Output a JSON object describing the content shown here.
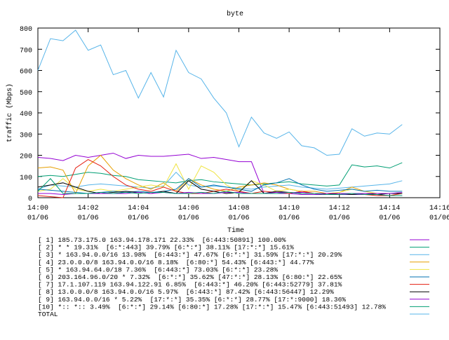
{
  "chart_data": {
    "type": "line",
    "title": "byte",
    "xlabel": "Time",
    "ylabel": "traffic (Mbps)",
    "xlim": [
      0,
      16
    ],
    "ylim": [
      0,
      800
    ],
    "xticks": [
      {
        "value": 0,
        "label": "14:00",
        "date": "01/06"
      },
      {
        "value": 2,
        "label": "14:02",
        "date": "01/06"
      },
      {
        "value": 4,
        "label": "14:04",
        "date": "01/06"
      },
      {
        "value": 6,
        "label": "14:06",
        "date": "01/06"
      },
      {
        "value": 8,
        "label": "14:08",
        "date": "01/06"
      },
      {
        "value": 10,
        "label": "14:10",
        "date": "01/06"
      },
      {
        "value": 12,
        "label": "14:12",
        "date": "01/06"
      },
      {
        "value": 14,
        "label": "14:14",
        "date": "01/06"
      },
      {
        "value": 16,
        "label": "14:16",
        "date": "01/06"
      }
    ],
    "yticks": [
      0,
      100,
      200,
      300,
      400,
      500,
      600,
      700,
      800
    ],
    "x": [
      0,
      0.5,
      1,
      1.5,
      2,
      2.5,
      3,
      3.5,
      4,
      4.5,
      5,
      5.5,
      6,
      6.5,
      7,
      7.5,
      8,
      8.5,
      9,
      9.5,
      10,
      10.5,
      11,
      11.5,
      12,
      12.5,
      13,
      13.5,
      14,
      14.5
    ],
    "series": [
      {
        "name": "[ 1] 185.73.175.0 163.94.178.171 22.33%  [6:443:50891] 100.00%",
        "color": "#9400d3",
        "values": [
          190,
          185,
          175,
          200,
          190,
          200,
          210,
          185,
          200,
          195,
          195,
          200,
          205,
          185,
          190,
          180,
          170,
          170,
          20,
          20,
          20,
          15,
          15,
          15,
          15,
          15,
          15,
          15,
          10,
          10
        ]
      },
      {
        "name": "[ 2] * * 19.31%  [6:*:443] 39.79% [6:*:*] 38.11% [17:*:*] 15.61%",
        "color": "#009e73",
        "values": [
          100,
          105,
          100,
          110,
          120,
          115,
          105,
          100,
          85,
          80,
          75,
          70,
          80,
          85,
          75,
          70,
          65,
          60,
          65,
          70,
          75,
          65,
          60,
          55,
          60,
          155,
          145,
          150,
          140,
          165
        ]
      },
      {
        "name": "[ 3] * 163.94.0.0/16 13.98%  [6:443:*] 47.67% [6:*:*] 31.59% [17:*:*] 20.29%",
        "color": "#56b4e9",
        "values": [
          40,
          60,
          55,
          50,
          60,
          65,
          60,
          55,
          50,
          45,
          55,
          120,
          60,
          50,
          55,
          50,
          45,
          40,
          50,
          55,
          60,
          50,
          45,
          40,
          45,
          50,
          55,
          60,
          65,
          80
        ]
      },
      {
        "name": "[ 4] 23.0.0.0/8 163.94.0.0/16 8.18%  [6:80:*] 54.43% [6:443:*] 44.77%",
        "color": "#e69f00",
        "values": [
          140,
          145,
          130,
          20,
          150,
          200,
          130,
          90,
          60,
          40,
          70,
          30,
          90,
          60,
          40,
          30,
          50,
          60,
          70,
          60,
          40,
          30,
          30,
          20,
          25,
          50,
          30,
          20,
          20,
          20
        ]
      },
      {
        "name": "[ 5] * 163.94.64.0/18 7.36%  [6:443:*] 73.03% [6:*:*] 23.28%",
        "color": "#f0e442",
        "values": [
          30,
          40,
          90,
          40,
          30,
          40,
          30,
          40,
          50,
          60,
          50,
          160,
          40,
          150,
          120,
          60,
          30,
          80,
          60,
          30,
          40,
          30,
          20,
          20,
          25,
          40,
          30,
          20,
          20,
          20
        ]
      },
      {
        "name": "[ 6] 203.164.96.0/20 * 7.32%  [6:*:*] 35.62% [47:*:*] 28.13% [6:80:*] 22.65%",
        "color": "#0072b2",
        "values": [
          40,
          35,
          30,
          25,
          20,
          25,
          30,
          25,
          30,
          25,
          30,
          40,
          90,
          50,
          60,
          50,
          40,
          30,
          60,
          70,
          90,
          60,
          40,
          30,
          35,
          40,
          30,
          35,
          30,
          30
        ]
      },
      {
        "name": "[ 7] 17.1.107.119 163.94.122.91 6.85%  [6:443:*] 46.20% [6:443:52779] 37.81%",
        "color": "#e51e10",
        "values": [
          10,
          5,
          0,
          140,
          180,
          150,
          100,
          60,
          40,
          30,
          50,
          30,
          20,
          20,
          30,
          40,
          30,
          20,
          30,
          25,
          20,
          30,
          20,
          15,
          20,
          20,
          15,
          10,
          10,
          20
        ]
      },
      {
        "name": "[ 8] 13.0.0.0/8 163.94.0.0/16 5.97%  [6:443:*] 87.42% [6:443:56447] 12.29%",
        "color": "#000000",
        "values": [
          50,
          60,
          70,
          50,
          30,
          20,
          25,
          30,
          25,
          20,
          30,
          20,
          80,
          40,
          30,
          20,
          25,
          80,
          20,
          30,
          25,
          20,
          20,
          15,
          20,
          15,
          20,
          15,
          20,
          20
        ]
      },
      {
        "name": "[ 9] 163.94.0.0/16 * 5.22%  [17:*:*] 35.35% [6:*:*] 28.77% [17:*:9000] 18.36%",
        "color": "#9400d3",
        "values": [
          20,
          20,
          15,
          20,
          20,
          20,
          20,
          20,
          25,
          20,
          25,
          20,
          25,
          20,
          20,
          25,
          25,
          20,
          20,
          25,
          25,
          25,
          20,
          20,
          20,
          20,
          20,
          20,
          20,
          25
        ]
      },
      {
        "name": "[10] *:: *:: 3.49%  [6:*:*] 29.14% [6:80:*] 17.28% [17:*:*] 15.47% [6:443:51493] 12.78%",
        "color": "#009e73",
        "values": [
          30,
          90,
          20,
          20,
          20,
          25,
          20,
          25,
          20,
          25,
          25,
          20,
          20,
          25,
          20,
          30,
          20,
          20,
          20,
          20,
          25,
          20,
          20,
          15,
          15,
          20,
          15,
          15,
          10,
          10
        ]
      },
      {
        "name": "TOTAL",
        "color": "#56b4e9",
        "values": [
          600,
          750,
          740,
          790,
          695,
          720,
          580,
          600,
          470,
          590,
          475,
          695,
          590,
          560,
          470,
          400,
          240,
          380,
          305,
          280,
          310,
          245,
          235,
          200,
          205,
          325,
          290,
          305,
          300,
          345
        ]
      }
    ]
  }
}
